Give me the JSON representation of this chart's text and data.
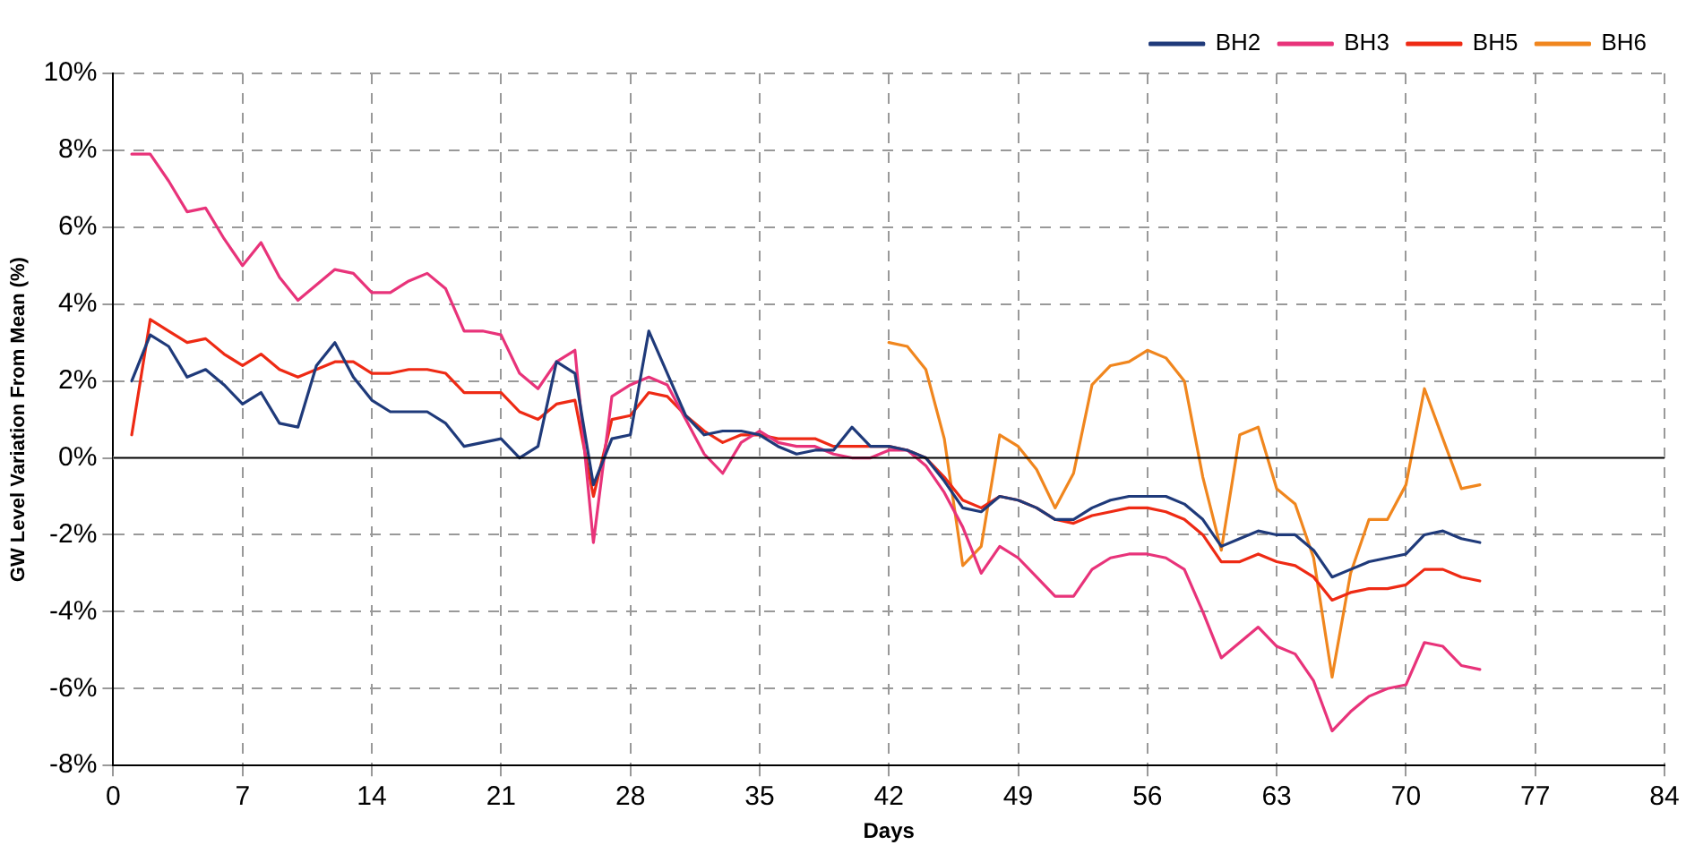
{
  "chart_data": {
    "type": "line",
    "xlabel": "Days",
    "ylabel": "GW Level Variation From Mean (%)",
    "x": [
      1,
      2,
      3,
      4,
      5,
      6,
      7,
      8,
      9,
      10,
      11,
      12,
      13,
      14,
      15,
      16,
      17,
      18,
      19,
      20,
      21,
      22,
      23,
      24,
      25,
      26,
      27,
      28,
      29,
      30,
      31,
      32,
      33,
      34,
      35,
      36,
      37,
      38,
      39,
      40,
      41,
      42,
      43,
      44,
      45,
      46,
      47,
      48,
      49,
      50,
      51,
      52,
      53,
      54,
      55,
      56,
      57,
      58,
      59,
      60,
      61,
      62,
      63,
      64,
      65,
      66,
      67,
      68,
      69,
      70,
      71,
      72,
      73,
      74
    ],
    "series": [
      {
        "name": "BH2",
        "color": "#1f3a7a",
        "values": [
          2.0,
          3.2,
          2.9,
          2.1,
          2.3,
          1.9,
          1.4,
          1.7,
          0.9,
          0.8,
          2.4,
          3.0,
          2.1,
          1.5,
          1.2,
          1.2,
          1.2,
          0.9,
          0.3,
          0.4,
          0.5,
          0.0,
          0.3,
          2.5,
          2.2,
          -0.7,
          0.5,
          0.6,
          3.3,
          2.2,
          1.1,
          0.6,
          0.7,
          0.7,
          0.6,
          0.3,
          0.1,
          0.2,
          0.2,
          0.8,
          0.3,
          0.3,
          0.2,
          0.0,
          -0.6,
          -1.3,
          -1.4,
          -1.0,
          -1.1,
          -1.3,
          -1.6,
          -1.6,
          -1.3,
          -1.1,
          -1.0,
          -1.0,
          -1.0,
          -1.2,
          -1.6,
          -2.3,
          -2.1,
          -1.9,
          -2.0,
          -2.0,
          -2.4,
          -3.1,
          -2.9,
          -2.7,
          -2.6,
          -2.5,
          -2.0,
          -1.9,
          -2.1,
          -2.2
        ]
      },
      {
        "name": "BH3",
        "color": "#e8337a",
        "values": [
          7.9,
          7.9,
          7.2,
          6.4,
          6.5,
          5.7,
          5.0,
          5.6,
          4.7,
          4.1,
          4.5,
          4.9,
          4.8,
          4.3,
          4.3,
          4.6,
          4.8,
          4.4,
          3.3,
          3.3,
          3.2,
          2.2,
          1.8,
          2.5,
          2.8,
          -2.2,
          1.6,
          1.9,
          2.1,
          1.9,
          1.0,
          0.1,
          -0.4,
          0.4,
          0.7,
          0.4,
          0.3,
          0.3,
          0.1,
          0.0,
          0.0,
          0.2,
          0.2,
          -0.2,
          -0.9,
          -1.8,
          -3.0,
          -2.3,
          -2.6,
          -3.1,
          -3.6,
          -3.6,
          -2.9,
          -2.6,
          -2.5,
          -2.5,
          -2.6,
          -2.9,
          -4.0,
          -5.2,
          -4.8,
          -4.4,
          -4.9,
          -5.1,
          -5.8,
          -7.1,
          -6.6,
          -6.2,
          -6.0,
          -5.9,
          -4.8,
          -4.9,
          -5.4,
          -5.5
        ]
      },
      {
        "name": "BH5",
        "color": "#ee2a14",
        "values": [
          0.6,
          3.6,
          3.3,
          3.0,
          3.1,
          2.7,
          2.4,
          2.7,
          2.3,
          2.1,
          2.3,
          2.5,
          2.5,
          2.2,
          2.2,
          2.3,
          2.3,
          2.2,
          1.7,
          1.7,
          1.7,
          1.2,
          1.0,
          1.4,
          1.5,
          -1.0,
          1.0,
          1.1,
          1.7,
          1.6,
          1.1,
          0.7,
          0.4,
          0.6,
          0.6,
          0.5,
          0.5,
          0.5,
          0.3,
          0.3,
          0.3,
          0.3,
          0.2,
          0.0,
          -0.5,
          -1.1,
          -1.3,
          -1.0,
          -1.1,
          -1.3,
          -1.6,
          -1.7,
          -1.5,
          -1.4,
          -1.3,
          -1.3,
          -1.4,
          -1.6,
          -2.0,
          -2.7,
          -2.7,
          -2.5,
          -2.7,
          -2.8,
          -3.1,
          -3.7,
          -3.5,
          -3.4,
          -3.4,
          -3.3,
          -2.9,
          -2.9,
          -3.1,
          -3.2
        ]
      },
      {
        "name": "BH6",
        "color": "#f0861e",
        "x": [
          42,
          43,
          44,
          45,
          46,
          47,
          48,
          49,
          50,
          51,
          52,
          53,
          54,
          55,
          56,
          57,
          58,
          59,
          60,
          61,
          62,
          63,
          64,
          65,
          66,
          67,
          68,
          69,
          70,
          71,
          72,
          73,
          74
        ],
        "values": [
          3.0,
          2.9,
          2.3,
          0.5,
          -2.8,
          -2.3,
          0.6,
          0.3,
          -0.3,
          -1.3,
          -0.4,
          1.9,
          2.4,
          2.5,
          2.8,
          2.6,
          2.0,
          -0.5,
          -2.4,
          0.6,
          0.8,
          -0.8,
          -1.2,
          -2.6,
          -5.7,
          -3.0,
          -1.6,
          -1.6,
          -0.7,
          1.8,
          0.5,
          -0.8,
          -0.7
        ]
      }
    ],
    "xlim": [
      0,
      84
    ],
    "xticks": [
      0,
      7,
      14,
      21,
      28,
      35,
      42,
      49,
      56,
      63,
      70,
      77,
      84
    ],
    "ylim": [
      -8,
      10
    ],
    "yticks": [
      {
        "value": -8,
        "label": "-8%"
      },
      {
        "value": -6,
        "label": "-6%"
      },
      {
        "value": -4,
        "label": "-4%"
      },
      {
        "value": -2,
        "label": "-2%"
      },
      {
        "value": 0,
        "label": "0%"
      },
      {
        "value": 2,
        "label": "2%"
      },
      {
        "value": 4,
        "label": "4%"
      },
      {
        "value": 6,
        "label": "6%"
      },
      {
        "value": 8,
        "label": "8%"
      },
      {
        "value": 10,
        "label": "10%"
      }
    ],
    "grid": true,
    "legend": "top right",
    "marker": "none",
    "line_style": "solid"
  }
}
